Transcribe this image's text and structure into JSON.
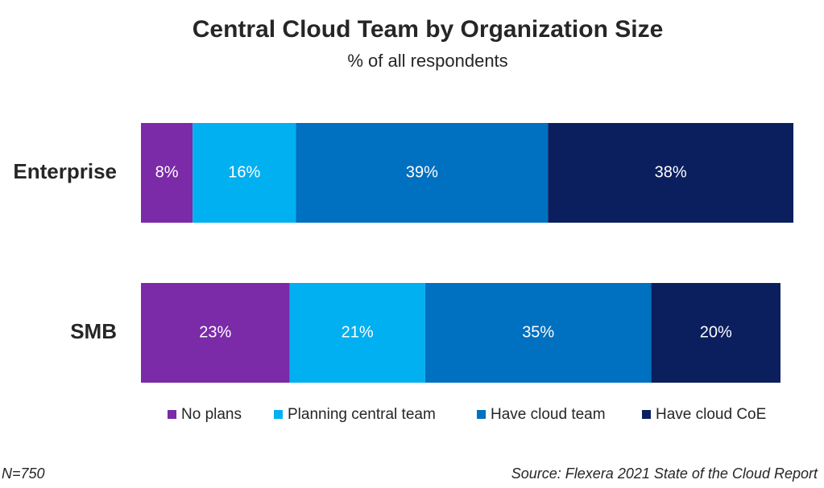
{
  "chart_data": {
    "type": "stacked-bar-horizontal",
    "title": "Central Cloud Team by Organization Size",
    "subtitle": "% of all respondents",
    "categories": [
      "Enterprise",
      "SMB"
    ],
    "series": [
      {
        "name": "No plans",
        "color": "#7b2aa8",
        "values": [
          8,
          23
        ],
        "value_labels": [
          "8%",
          "23%"
        ]
      },
      {
        "name": "Planning central team",
        "color": "#00b0f0",
        "values": [
          16,
          21
        ],
        "value_labels": [
          "16%",
          "21%"
        ]
      },
      {
        "name": "Have cloud team",
        "color": "#0070c0",
        "values": [
          39,
          35
        ],
        "value_labels": [
          "39%",
          "35%"
        ]
      },
      {
        "name": "Have cloud CoE",
        "color": "#0b1f5e",
        "values": [
          38,
          20
        ],
        "value_labels": [
          "38%",
          "20%"
        ]
      }
    ],
    "xlim": [
      0,
      101
    ],
    "note": "N=750",
    "source": "Source: Flexera 2021 State of the Cloud Report"
  }
}
